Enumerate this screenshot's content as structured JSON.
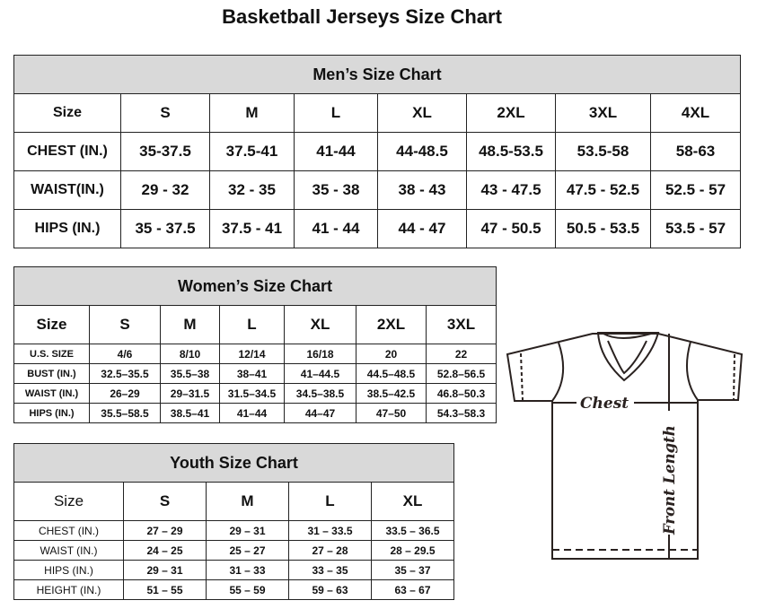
{
  "title": "Basketball Jerseys Size Chart",
  "men": {
    "title": "Men’s Size Chart",
    "header": [
      "Size",
      "S",
      "M",
      "L",
      "XL",
      "2XL",
      "3XL",
      "4XL"
    ],
    "rows": [
      [
        "CHEST (IN.)",
        "35-37.5",
        "37.5-41",
        "41-44",
        "44-48.5",
        "48.5-53.5",
        "53.5-58",
        "58-63"
      ],
      [
        "WAIST(IN.)",
        "29 - 32",
        "32 - 35",
        "35 - 38",
        "38 - 43",
        "43 - 47.5",
        "47.5 - 52.5",
        "52.5 - 57"
      ],
      [
        "HIPS (IN.)",
        "35 - 37.5",
        "37.5 - 41",
        "41 - 44",
        "44 - 47",
        "47 - 50.5",
        "50.5 - 53.5",
        "53.5 - 57"
      ]
    ]
  },
  "women": {
    "title": "Women’s Size Chart",
    "header": [
      "Size",
      "S",
      "M",
      "L",
      "XL",
      "2XL",
      "3XL"
    ],
    "rows": [
      [
        "U.S. SIZE",
        "4/6",
        "8/10",
        "12/14",
        "16/18",
        "20",
        "22"
      ],
      [
        "BUST (IN.)",
        "32.5–35.5",
        "35.5–38",
        "38–41",
        "41–44.5",
        "44.5–48.5",
        "52.8–56.5"
      ],
      [
        "WAIST (IN.)",
        "26–29",
        "29–31.5",
        "31.5–34.5",
        "34.5–38.5",
        "38.5–42.5",
        "46.8–50.3"
      ],
      [
        "HIPS (IN.)",
        "35.5–58.5",
        "38.5–41",
        "41–44",
        "44–47",
        "47–50",
        "54.3–58.3"
      ]
    ]
  },
  "youth": {
    "title": "Youth Size Chart",
    "header": [
      "Size",
      "S",
      "M",
      "L",
      "XL"
    ],
    "rows": [
      [
        "CHEST (IN.)",
        "27 – 29",
        "29 – 31",
        "31 – 33.5",
        "33.5 – 36.5"
      ],
      [
        "WAIST (IN.)",
        "24 – 25",
        "25 – 27",
        "27 – 28",
        "28 – 29.5"
      ],
      [
        "HIPS (IN.)",
        "29 – 31",
        "31 – 33",
        "33 – 35",
        "35 – 37"
      ],
      [
        "HEIGHT (IN.)",
        "51 – 55",
        "55 – 59",
        "59 – 63",
        "63 – 67"
      ]
    ]
  },
  "jersey": {
    "chest_label": "Chest",
    "length_label": "Front Length"
  }
}
